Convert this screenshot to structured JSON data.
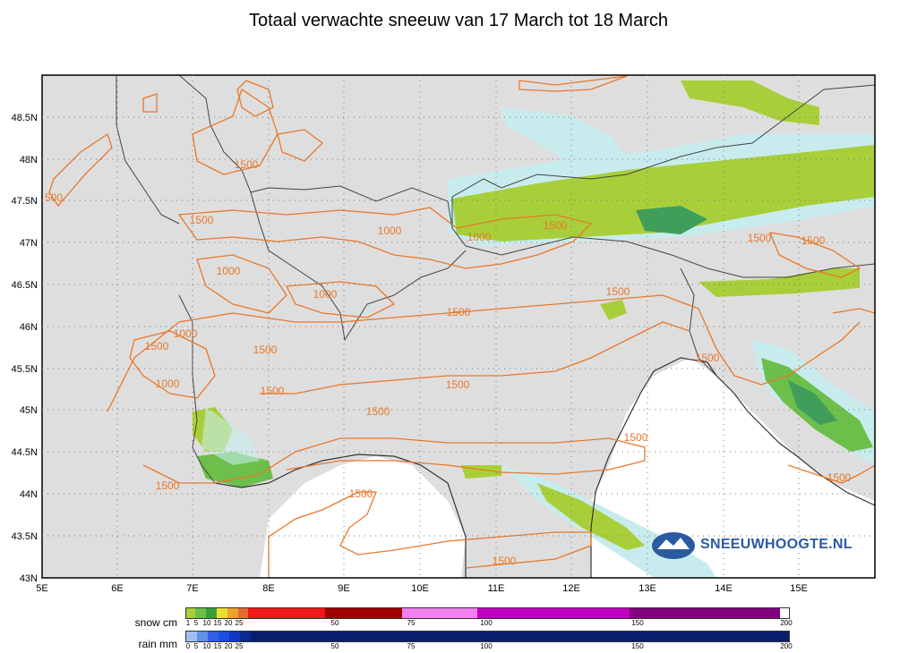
{
  "title": "Totaal verwachte sneeuw van 17 March tot 18 March",
  "map": {
    "lat_labels": [
      "48.5N",
      "48N",
      "47.5N",
      "47N",
      "46.5N",
      "46N",
      "45.5N",
      "45N",
      "44.5N",
      "44N",
      "43.5N",
      "43N"
    ],
    "lon_labels": [
      "5E",
      "6E",
      "7E",
      "8E",
      "9E",
      "10E",
      "11E",
      "12E",
      "13E",
      "14E",
      "15E"
    ],
    "contour_labels": [
      "1500",
      "500",
      "1500",
      "1000",
      "1000",
      "1000",
      "1500",
      "1000",
      "1500",
      "1000",
      "1500",
      "1500",
      "1000",
      "1500",
      "1500",
      "1500",
      "1500",
      "1500",
      "1500",
      "1500",
      "1500",
      "1500",
      "1500"
    ],
    "colors": {
      "land": "#dedede",
      "sea": "#ffffff",
      "contour": "#e8782a",
      "snow_light": "#a8cf3a",
      "snow_mid": "#6cbf4a",
      "snow_dark": "#3e9e5a",
      "snow_light_area": "#c8ecee"
    }
  },
  "brand": "SNEEUWHOOGTE.NL",
  "legend": {
    "snow": {
      "label": "snow cm",
      "ticks": [
        "1",
        "5",
        "10",
        "15",
        "20",
        "25",
        "50",
        "75",
        "100",
        "150",
        "200"
      ],
      "colors": [
        "#a8cf3a",
        "#6cbf4a",
        "#3e9e3a",
        "#e8e030",
        "#f0a030",
        "#e86a30",
        "#f01818",
        "#a00000",
        "#f080f0",
        "#c000c0",
        "#800080"
      ]
    },
    "rain": {
      "label": "rain mm",
      "ticks": [
        "0",
        "5",
        "10",
        "15",
        "20",
        "25",
        "50",
        "75",
        "100",
        "150",
        "200"
      ],
      "colors": [
        "#a0c0f0",
        "#6090e8",
        "#3060e0",
        "#1a4ee0",
        "#1038c0",
        "#0a2a90",
        "#08206a"
      ]
    }
  }
}
